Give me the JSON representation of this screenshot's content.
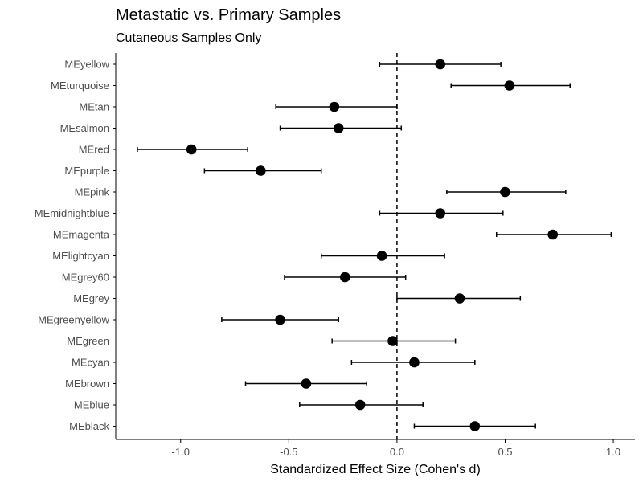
{
  "chart_data": {
    "type": "scatter",
    "title": "Metastatic vs. Primary Samples",
    "subtitle": "Cutaneous Samples Only",
    "xlabel": "Standardized Effect Size (Cohen's d)",
    "ylabel": "",
    "xlim": [
      -1.3,
      1.1
    ],
    "xticks": [
      -1.0,
      -0.5,
      0.0,
      0.5,
      1.0
    ],
    "xtick_labels": [
      "-1.0",
      "-0.5",
      "0.0",
      "0.5",
      "1.0"
    ],
    "reference_line_x": 0.0,
    "grid": false,
    "categories": [
      "MEyellow",
      "MEturquoise",
      "MEtan",
      "MEsalmon",
      "MEred",
      "MEpurple",
      "MEpink",
      "MEmidnightblue",
      "MEmagenta",
      "MElightcyan",
      "MEgrey60",
      "MEgrey",
      "MEgreenyellow",
      "MEgreen",
      "MEcyan",
      "MEbrown",
      "MEblue",
      "MEblack"
    ],
    "estimates": [
      0.2,
      0.52,
      -0.29,
      -0.27,
      -0.95,
      -0.63,
      0.5,
      0.2,
      0.72,
      -0.07,
      -0.24,
      0.29,
      -0.54,
      -0.02,
      0.08,
      -0.42,
      -0.17,
      0.36
    ],
    "lower": [
      -0.08,
      0.25,
      -0.56,
      -0.54,
      -1.2,
      -0.89,
      0.23,
      -0.08,
      0.46,
      -0.35,
      -0.52,
      0.0,
      -0.81,
      -0.3,
      -0.21,
      -0.7,
      -0.45,
      0.08
    ],
    "upper": [
      0.48,
      0.8,
      0.0,
      0.02,
      -0.69,
      -0.35,
      0.78,
      0.49,
      0.99,
      0.22,
      0.04,
      0.57,
      -0.27,
      0.27,
      0.36,
      -0.14,
      0.12,
      0.64
    ]
  }
}
